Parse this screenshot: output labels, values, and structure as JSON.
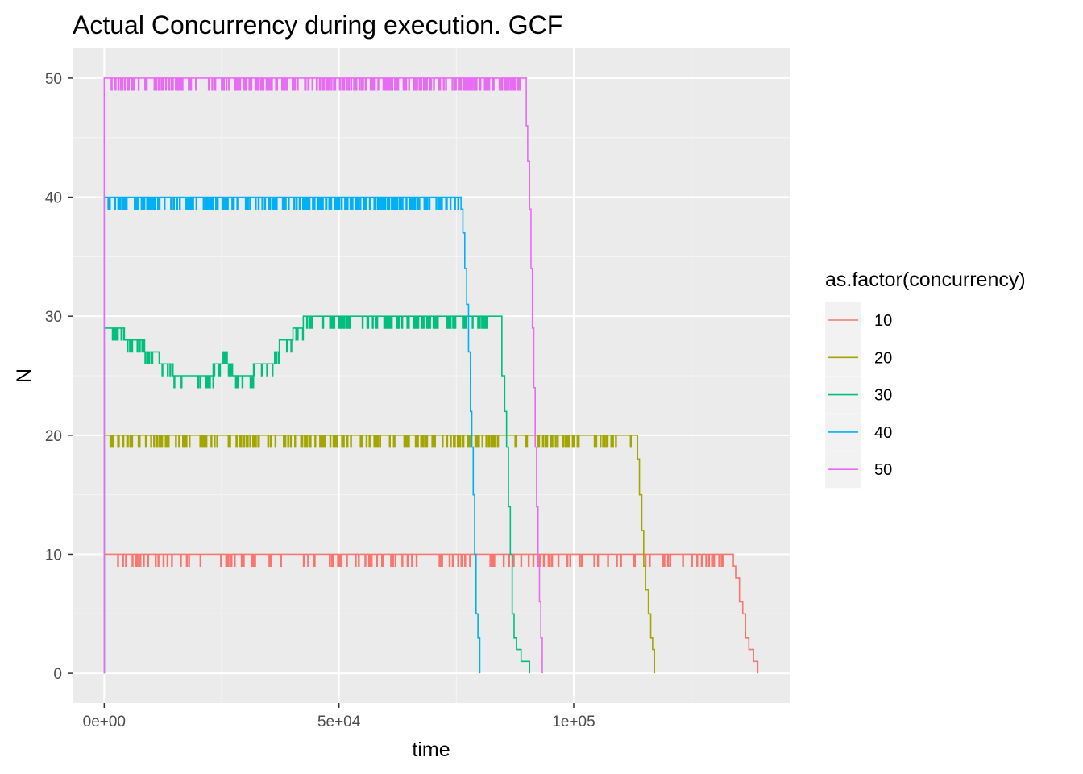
{
  "chart_data": {
    "type": "line",
    "title": "Actual Concurrency during execution. GCF",
    "xlabel": "time",
    "ylabel": "N",
    "xlim": [
      -6750,
      146000
    ],
    "ylim": [
      -2.5,
      52.5
    ],
    "x_ticks": [
      {
        "value": 0,
        "label": "0e+00"
      },
      {
        "value": 50000,
        "label": "5e+04"
      },
      {
        "value": 100000,
        "label": "1e+05"
      }
    ],
    "y_ticks": [
      {
        "value": 0,
        "label": "0"
      },
      {
        "value": 10,
        "label": "10"
      },
      {
        "value": 20,
        "label": "20"
      },
      {
        "value": 30,
        "label": "30"
      },
      {
        "value": 40,
        "label": "40"
      },
      {
        "value": 50,
        "label": "50"
      }
    ],
    "grid": true,
    "legend": {
      "title": "as.factor(concurrency)",
      "position": "right"
    },
    "series": [
      {
        "name": "10",
        "color": "#F8766D",
        "plateau": 10,
        "start": 0,
        "end_plateau": 133500,
        "drop_level": 9,
        "dropouts": 130,
        "tail": [
          [
            133500,
            10
          ],
          [
            134000,
            9
          ],
          [
            134500,
            8
          ],
          [
            135300,
            6
          ],
          [
            136000,
            5
          ],
          [
            136600,
            3
          ],
          [
            137300,
            2
          ],
          [
            138300,
            1
          ],
          [
            139200,
            0
          ]
        ]
      },
      {
        "name": "20",
        "color": "#A3A500",
        "plateau": 20,
        "start": 0,
        "end_plateau": 113000,
        "drop_level": 19,
        "dropouts": 190,
        "tail": [
          [
            113000,
            20
          ],
          [
            113600,
            18
          ],
          [
            114000,
            15
          ],
          [
            114500,
            12
          ],
          [
            114900,
            9
          ],
          [
            115300,
            7
          ],
          [
            115900,
            5
          ],
          [
            116400,
            3
          ],
          [
            116800,
            2
          ],
          [
            117200,
            0
          ]
        ]
      },
      {
        "name": "30",
        "color": "#00BF7D",
        "plateau": 30,
        "start": 0,
        "end_plateau": 84000,
        "drop_level": 29,
        "dropouts": 150,
        "profile": [
          [
            0,
            29
          ],
          [
            3500,
            29
          ],
          [
            4300,
            28
          ],
          [
            8000,
            28
          ],
          [
            8600,
            27
          ],
          [
            11000,
            27
          ],
          [
            11700,
            26
          ],
          [
            13800,
            26
          ],
          [
            14600,
            25
          ],
          [
            22800,
            25
          ],
          [
            23200,
            26
          ],
          [
            24500,
            26
          ],
          [
            25200,
            27
          ],
          [
            26200,
            26
          ],
          [
            27300,
            25
          ],
          [
            30600,
            25
          ],
          [
            31800,
            26
          ],
          [
            35000,
            26
          ],
          [
            36300,
            27
          ],
          [
            37300,
            28
          ],
          [
            39000,
            28
          ],
          [
            40200,
            29
          ],
          [
            41800,
            29
          ],
          [
            42400,
            30
          ],
          [
            84000,
            30
          ]
        ],
        "tail": [
          [
            84000,
            30
          ],
          [
            84700,
            25
          ],
          [
            85300,
            22
          ],
          [
            85700,
            19
          ],
          [
            86100,
            14
          ],
          [
            86500,
            10
          ],
          [
            86900,
            5
          ],
          [
            87300,
            3
          ],
          [
            87800,
            2
          ],
          [
            88800,
            1
          ],
          [
            90600,
            0
          ]
        ]
      },
      {
        "name": "40",
        "color": "#00B0F6",
        "plateau": 40,
        "start": 0,
        "end_plateau": 76000,
        "drop_level": 39,
        "dropouts": 200,
        "tail": [
          [
            76000,
            39
          ],
          [
            76400,
            37
          ],
          [
            76800,
            34
          ],
          [
            77200,
            31
          ],
          [
            77600,
            27
          ],
          [
            78000,
            22
          ],
          [
            78300,
            19
          ],
          [
            78600,
            15
          ],
          [
            78900,
            10
          ],
          [
            79200,
            5
          ],
          [
            79600,
            3
          ],
          [
            80000,
            0
          ]
        ]
      },
      {
        "name": "50",
        "color": "#E76BF3",
        "plateau": 50,
        "start": 0,
        "end_plateau": 89500,
        "drop_level": 49,
        "dropouts": 230,
        "tail": [
          [
            89500,
            50
          ],
          [
            89900,
            46
          ],
          [
            90200,
            43
          ],
          [
            90600,
            39
          ],
          [
            90900,
            34
          ],
          [
            91200,
            29
          ],
          [
            91500,
            24
          ],
          [
            91800,
            19
          ],
          [
            92100,
            14
          ],
          [
            92400,
            9
          ],
          [
            92700,
            6
          ],
          [
            93000,
            3
          ],
          [
            93300,
            0
          ]
        ]
      }
    ]
  }
}
